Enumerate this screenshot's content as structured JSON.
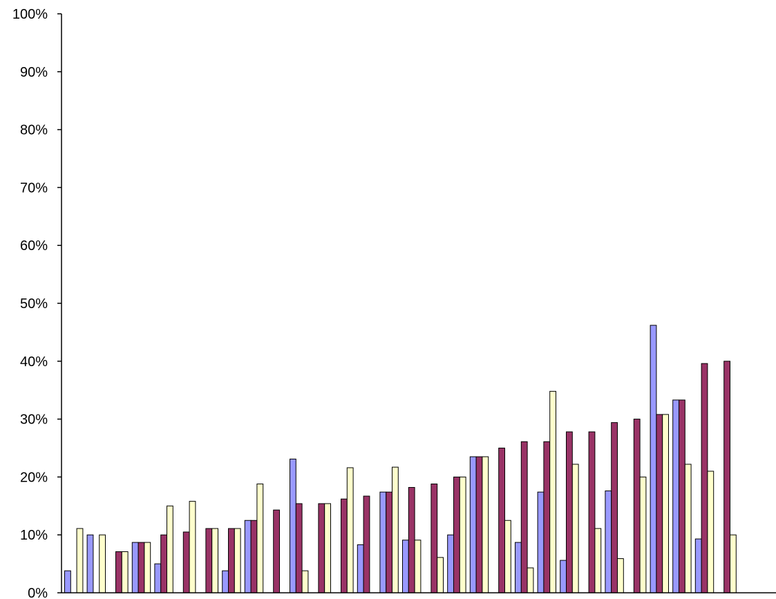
{
  "chart_data": {
    "type": "bar",
    "title": "",
    "xlabel": "",
    "ylabel": "",
    "ylim": [
      0,
      100
    ],
    "grid": false,
    "legend": "none",
    "y_ticks": [
      "0%",
      "10%",
      "20%",
      "30%",
      "40%",
      "50%",
      "60%",
      "70%",
      "80%",
      "90%",
      "100%"
    ],
    "series": [
      {
        "color": "#9999FF",
        "values": [
          3.8,
          10.0,
          0,
          8.7,
          5.0,
          0,
          0,
          3.8,
          12.5,
          0,
          23.1,
          0,
          0,
          8.3,
          17.4,
          9.1,
          0,
          10.0,
          23.5,
          0,
          8.7,
          17.4,
          5.6,
          0,
          17.6,
          0,
          46.2,
          33.3,
          9.3,
          0
        ]
      },
      {
        "color": "#993366",
        "values": [
          0,
          0,
          7.1,
          8.7,
          10.0,
          10.5,
          11.1,
          11.1,
          12.5,
          14.3,
          15.4,
          15.4,
          16.2,
          16.7,
          17.4,
          18.2,
          18.8,
          20.0,
          23.5,
          25.0,
          26.1,
          26.1,
          27.8,
          27.8,
          29.4,
          30.0,
          30.8,
          33.3,
          39.6,
          40.0
        ]
      },
      {
        "color": "#FFFFCC",
        "values": [
          11.1,
          10.0,
          7.1,
          8.7,
          15.0,
          15.8,
          11.1,
          11.1,
          18.8,
          0,
          3.8,
          15.4,
          21.6,
          0,
          21.7,
          9.1,
          6.1,
          20.0,
          23.5,
          12.5,
          4.3,
          34.8,
          22.2,
          11.1,
          5.9,
          20.0,
          30.8,
          22.2,
          21.0,
          10.0
        ]
      }
    ]
  }
}
